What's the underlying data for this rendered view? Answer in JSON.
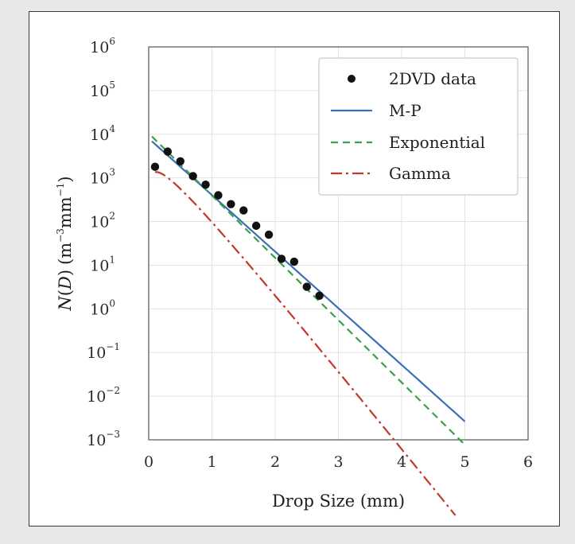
{
  "chart_data": {
    "type": "line",
    "title": "",
    "xlabel": "Drop Size (mm)",
    "ylabel": "N(D) (m⁻³mm⁻¹)",
    "ylabel_parts": {
      "n": "N",
      "d": "D",
      "open": "(",
      "close": ")",
      "units_open": "(m",
      "exp1": "−3",
      "mid": "mm",
      "exp2": "−1",
      "units_close": ")"
    },
    "xlim": [
      0,
      6
    ],
    "ylim_log10": [
      -3,
      6
    ],
    "log_y": true,
    "grid": true,
    "legend_position": "top-right",
    "x_ticks": [
      0,
      1,
      2,
      3,
      4,
      5,
      6
    ],
    "y_ticks": [
      {
        "base": "10",
        "exp": "−3",
        "value": -3
      },
      {
        "base": "10",
        "exp": "−2",
        "value": -2
      },
      {
        "base": "10",
        "exp": "−1",
        "value": -1
      },
      {
        "base": "10",
        "exp": "0",
        "value": 0
      },
      {
        "base": "10",
        "exp": "1",
        "value": 1
      },
      {
        "base": "10",
        "exp": "2",
        "value": 2
      },
      {
        "base": "10",
        "exp": "3",
        "value": 3
      },
      {
        "base": "10",
        "exp": "4",
        "value": 4
      },
      {
        "base": "10",
        "exp": "5",
        "value": 5
      },
      {
        "base": "10",
        "exp": "6",
        "value": 6
      }
    ],
    "series": [
      {
        "name": "2DVD data",
        "kind": "scatter",
        "color": "#111111",
        "x": [
          0.1,
          0.3,
          0.5,
          0.7,
          0.9,
          1.1,
          1.3,
          1.5,
          1.7,
          1.9,
          2.1,
          2.3,
          2.5,
          2.7
        ],
        "y": [
          1800,
          4000,
          2400,
          1100,
          700,
          400,
          250,
          180,
          80,
          50,
          14,
          12,
          3.2,
          2.0
        ]
      },
      {
        "name": "M-P",
        "kind": "line",
        "color": "#3d6fb4",
        "dash": "",
        "N0": 8000,
        "lambda": 2.985,
        "x_range": [
          0.05,
          5.0
        ]
      },
      {
        "name": "Exponential",
        "kind": "line",
        "color": "#3aa04a",
        "dash": "9,6",
        "N0": 10500,
        "lambda": 3.285,
        "x_range": [
          0.05,
          5.0
        ]
      },
      {
        "name": "Gamma",
        "kind": "line",
        "color": "#c0392b",
        "dash": "14,5,3,5",
        "N0": 6550,
        "mu": 0.5,
        "lambda": 4.22,
        "x_range": [
          0.1,
          4.85
        ]
      }
    ]
  }
}
